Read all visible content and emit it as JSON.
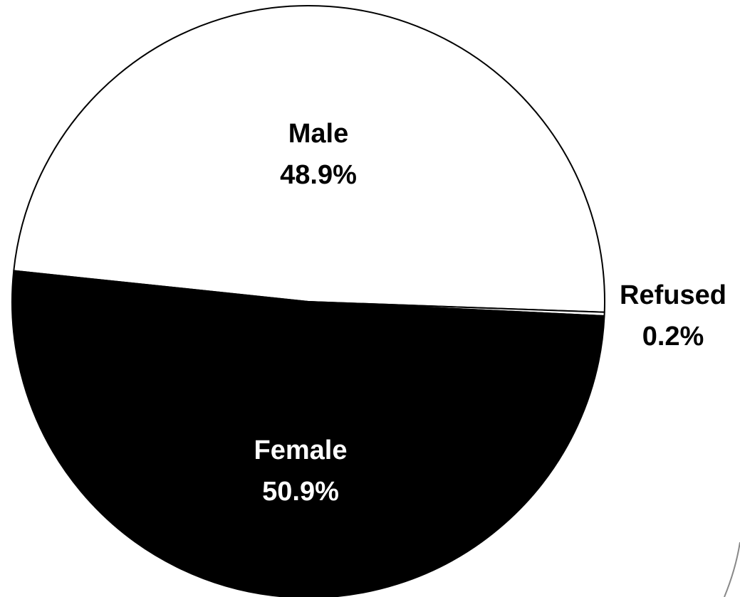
{
  "chart_data": {
    "type": "pie",
    "slices": [
      {
        "name": "Male",
        "value": 48.9,
        "label": "Male",
        "value_label": "48.9%",
        "color": "#ffffff",
        "label_color": "#000000"
      },
      {
        "name": "Refused",
        "value": 0.2,
        "label": "Refused",
        "value_label": "0.2%",
        "color": "#ffffff",
        "label_color": "#000000"
      },
      {
        "name": "Female",
        "value": 50.9,
        "label": "Female",
        "value_label": "50.9%",
        "color": "#000000",
        "label_color": "#ffffff"
      }
    ],
    "legend": "none",
    "grid": false
  }
}
